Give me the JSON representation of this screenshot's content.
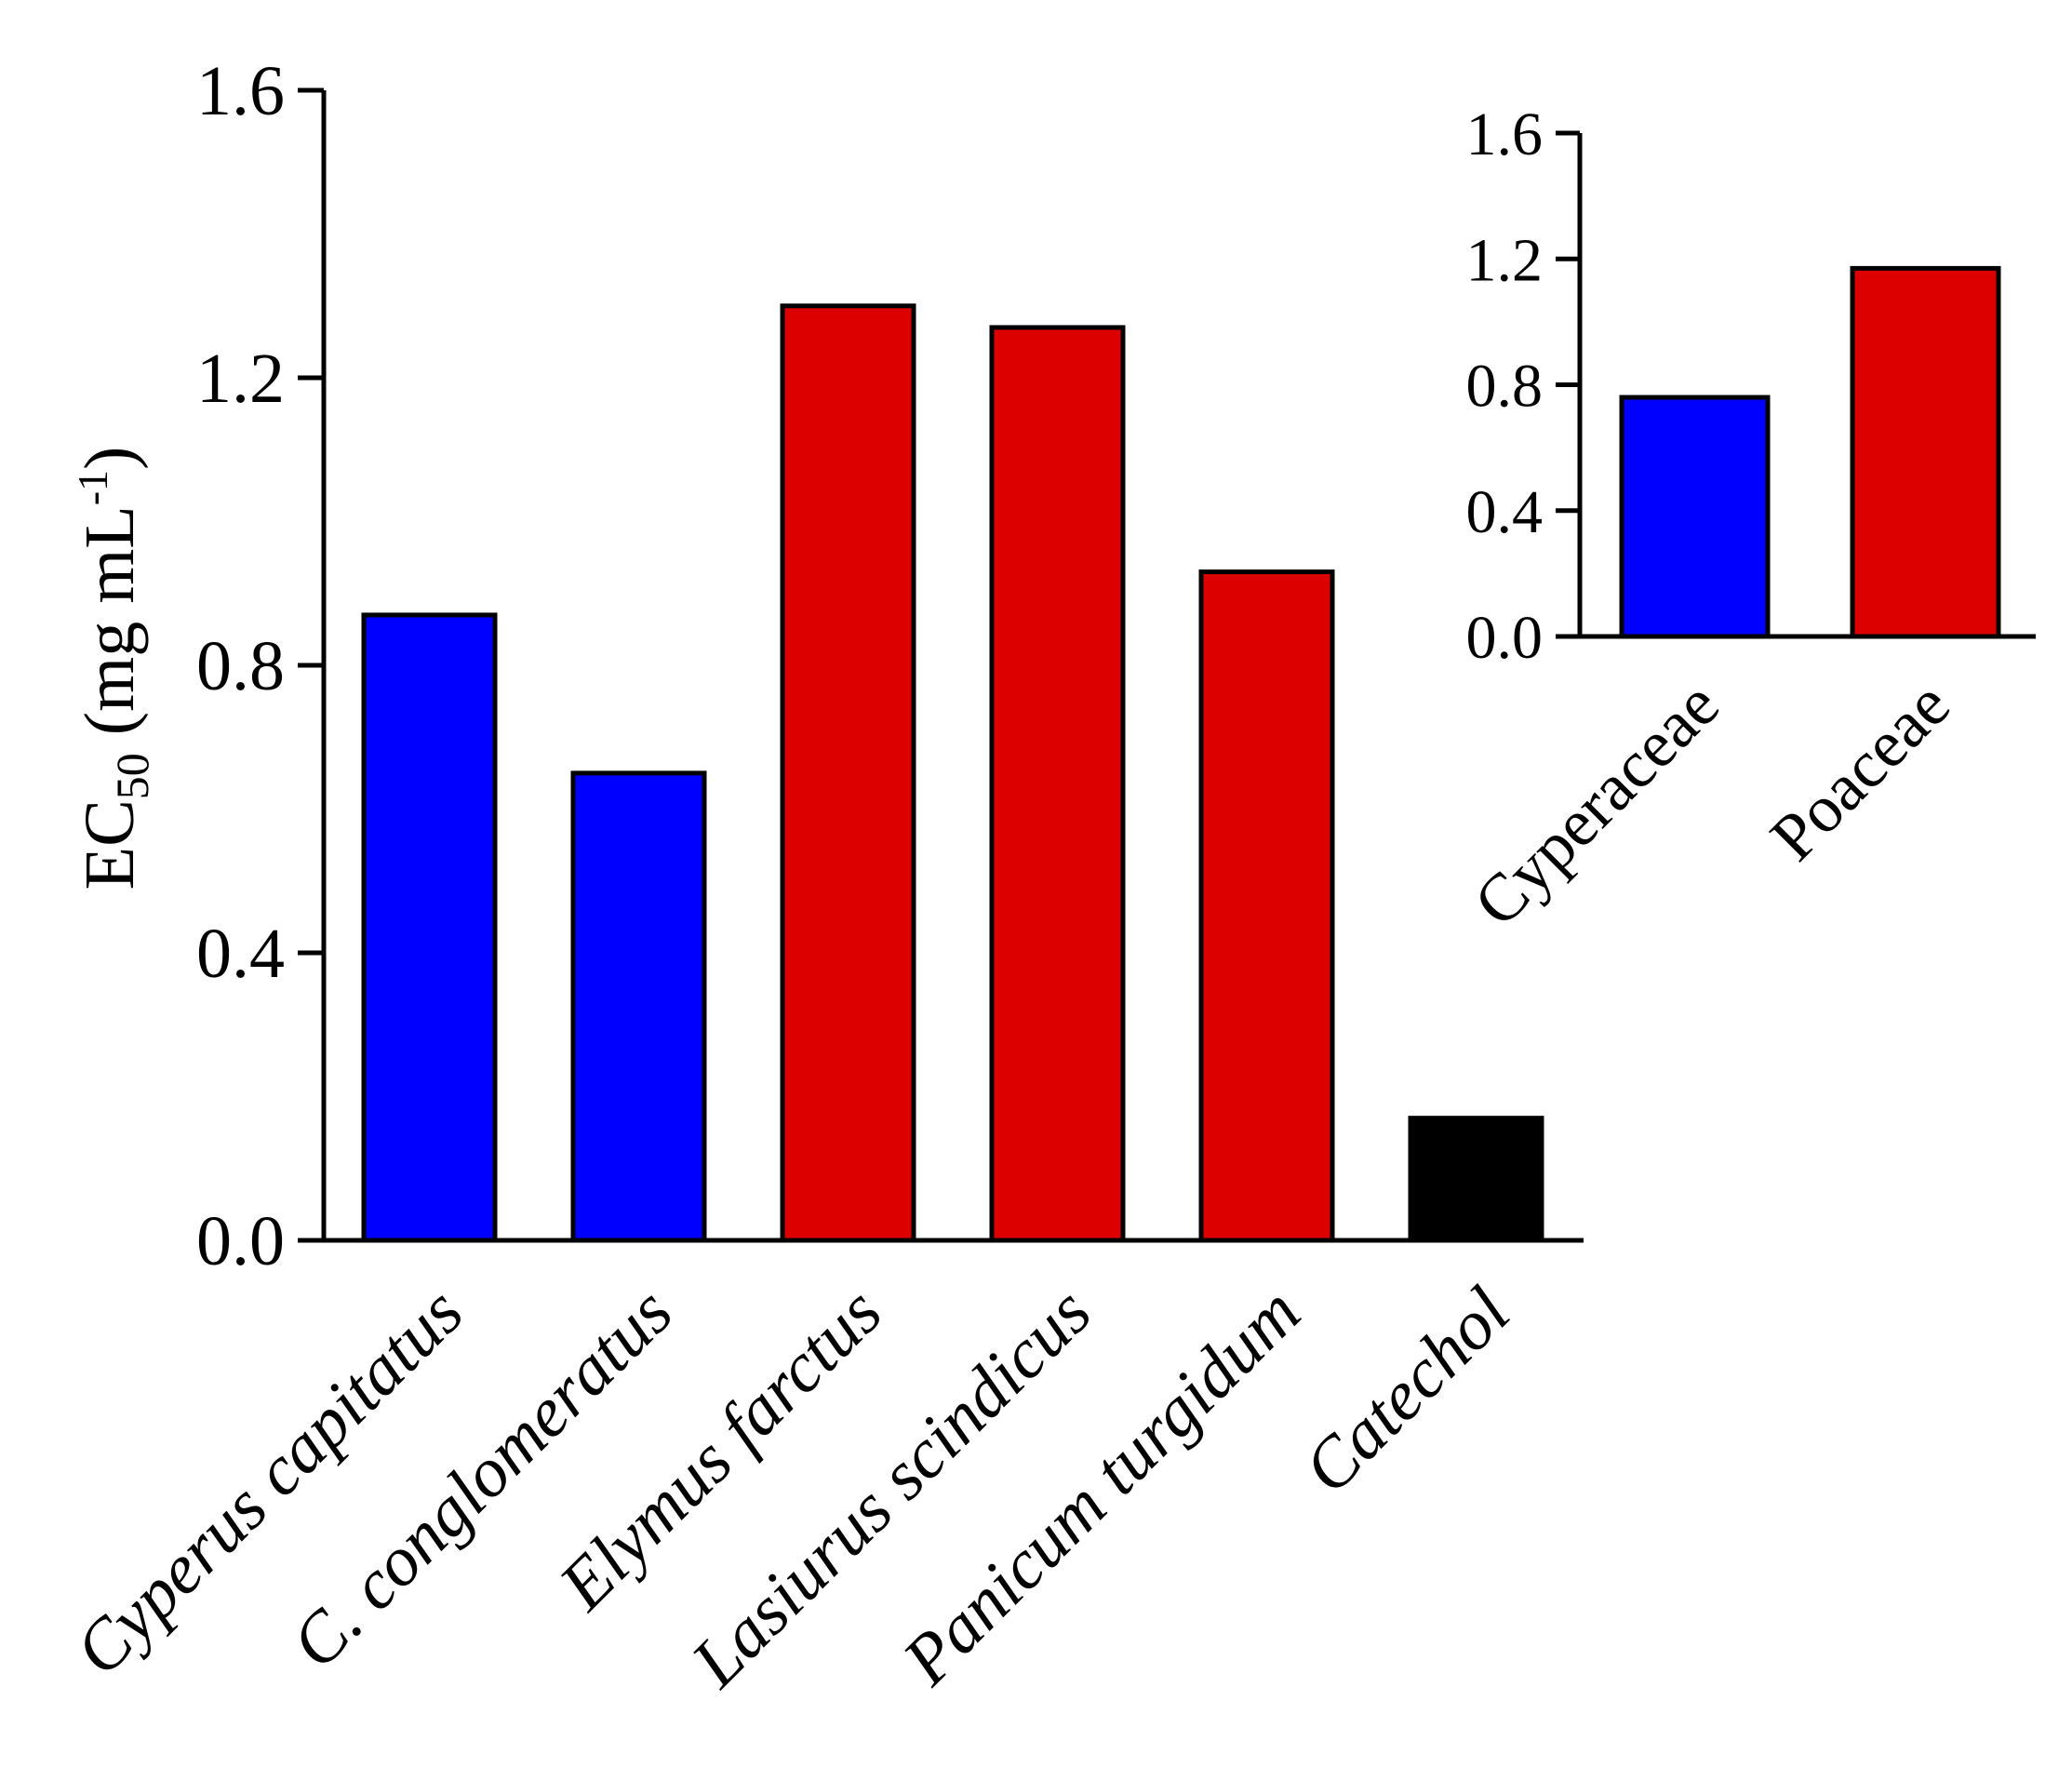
{
  "chart_data": [
    {
      "type": "bar",
      "id": "main",
      "title": "",
      "categories": [
        "Cyperus capitatus",
        "C. conglomeratus",
        "Elymus farctus",
        "Lasiurus scindicus",
        "Panicum turgidum",
        "Catechol"
      ],
      "values": [
        0.87,
        0.65,
        1.3,
        1.27,
        0.93,
        0.17
      ],
      "bar_colors": [
        "#0000ff",
        "#0000ff",
        "#dd0000",
        "#dd0000",
        "#dd0000",
        "#000000"
      ],
      "ylim": [
        0.0,
        1.6
      ],
      "yticks": [
        "0.0",
        "0.4",
        "0.8",
        "1.2",
        "1.6"
      ],
      "ytick_values": [
        0.0,
        0.4,
        0.8,
        1.2,
        1.6
      ],
      "ylabel": {
        "main": "EC",
        "subscript": "50",
        "units_open": " (mg mL",
        "superscript": "-1",
        "units_close": ")"
      },
      "xlabel": "",
      "xtick_style": "italic",
      "grid": false
    },
    {
      "type": "bar",
      "id": "inset",
      "title": "",
      "categories": [
        "Cyperaceae",
        "Poaceae"
      ],
      "values": [
        0.76,
        1.17
      ],
      "bar_colors": [
        "#0000ff",
        "#dd0000"
      ],
      "ylim": [
        0.0,
        1.6
      ],
      "yticks": [
        "0.0",
        "0.4",
        "0.8",
        "1.2",
        "1.6"
      ],
      "ytick_values": [
        0.0,
        0.4,
        0.8,
        1.2,
        1.6
      ],
      "ylabel": "",
      "xlabel": "",
      "grid": false
    }
  ]
}
